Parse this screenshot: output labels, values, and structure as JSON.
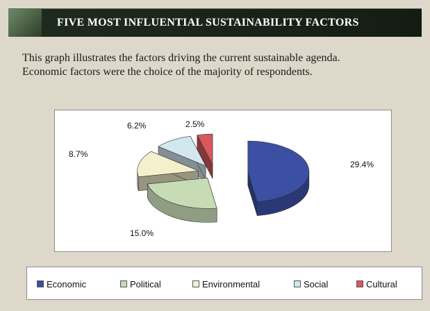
{
  "header": {
    "title": "FIVE MOST INFLUENTIAL SUSTAINABILITY FACTORS"
  },
  "description": {
    "line1": "This graph illustrates the factors driving the current sustainable agenda.",
    "line2": "Economic factors were the  choice of the majority of respondents."
  },
  "chart_data": {
    "type": "pie",
    "style": "3d-exploded",
    "categories": [
      "Economic",
      "Political",
      "Environmental",
      "Social",
      "Cultural"
    ],
    "values": [
      29.4,
      15.0,
      8.7,
      6.2,
      2.5
    ],
    "value_labels": [
      "29.4%",
      "15.0%",
      "8.7%",
      "6.2%",
      "2.5%"
    ],
    "colors": [
      "#3b4fa3",
      "#c7dbb5",
      "#f5f0cc",
      "#d2e7ee",
      "#d9585d"
    ],
    "title": "",
    "legend": "bottom"
  }
}
